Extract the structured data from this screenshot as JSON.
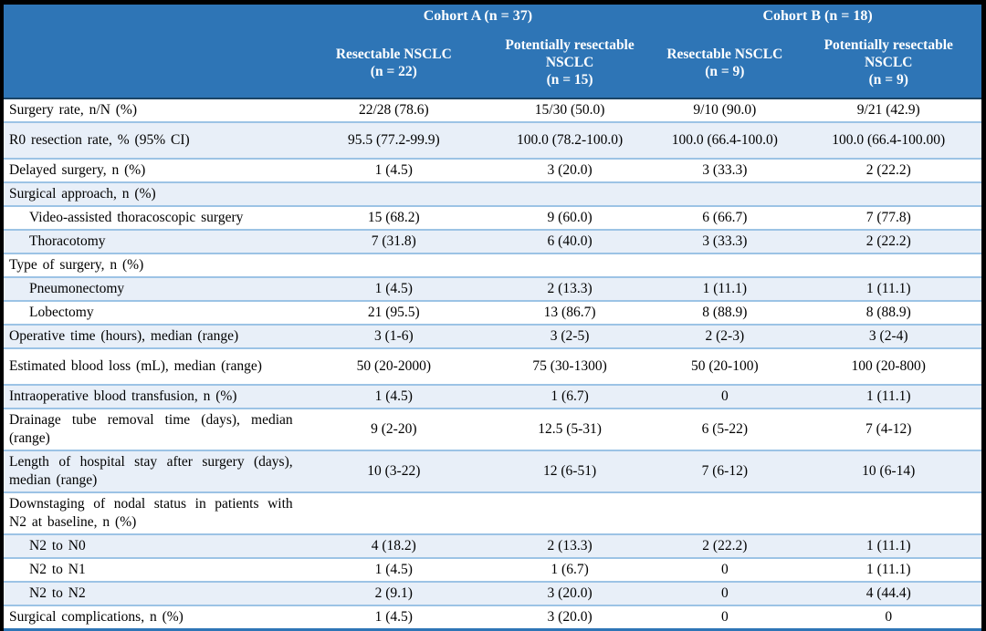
{
  "table": {
    "colors": {
      "header_bg": "#2E75B6",
      "band_bg": "#E8EFF8",
      "row_border": "#9CC3E5",
      "header_divider": "#1B4465",
      "bottom_line": "#2E75B6",
      "frame": "#000000",
      "header_text": "#FFFFFF",
      "body_text": "#000000"
    },
    "header": {
      "corner": "",
      "groups": [
        {
          "label": "Cohort A (n = 37)"
        },
        {
          "label": "Cohort B (n = 18)"
        }
      ],
      "columns": [
        {
          "name": "Resectable NSCLC",
          "n": "(n = 22)"
        },
        {
          "name": "Potentially resectable NSCLC",
          "n": "(n = 15)"
        },
        {
          "name": "Resectable NSCLC",
          "n": "(n = 9)"
        },
        {
          "name": "Potentially resectable NSCLC",
          "n": "(n = 9)"
        }
      ]
    },
    "rows": [
      {
        "label": "Surgery rate, n/N (%)",
        "indent": false,
        "tall": false,
        "values": [
          "22/28 (78.6)",
          "15/30 (50.0)",
          "9/10 (90.0)",
          "9/21 (42.9)"
        ]
      },
      {
        "label": "R0 resection rate, % (95% CI)",
        "indent": false,
        "tall": true,
        "values": [
          "95.5 (77.2-99.9)",
          "100.0 (78.2-100.0)",
          "100.0 (66.4-100.0)",
          "100.0 (66.4-100.00)"
        ]
      },
      {
        "label": "Delayed surgery, n (%)",
        "indent": false,
        "tall": false,
        "values": [
          "1 (4.5)",
          "3 (20.0)",
          "3 (33.3)",
          "2 (22.2)"
        ]
      },
      {
        "label": "Surgical approach, n (%)",
        "indent": false,
        "tall": false,
        "values": [
          "",
          "",
          "",
          ""
        ]
      },
      {
        "label": "Video-assisted thoracoscopic surgery",
        "indent": true,
        "tall": false,
        "values": [
          "15 (68.2)",
          "9 (60.0)",
          "6 (66.7)",
          "7 (77.8)"
        ]
      },
      {
        "label": "Thoracotomy",
        "indent": true,
        "tall": false,
        "values": [
          "7 (31.8)",
          "6 (40.0)",
          "3 (33.3)",
          "2 (22.2)"
        ]
      },
      {
        "label": "Type of surgery, n (%)",
        "indent": false,
        "tall": false,
        "values": [
          "",
          "",
          "",
          ""
        ]
      },
      {
        "label": "Pneumonectomy",
        "indent": true,
        "tall": false,
        "values": [
          "1 (4.5)",
          "2 (13.3)",
          "1 (11.1)",
          "1 (11.1)"
        ]
      },
      {
        "label": "Lobectomy",
        "indent": true,
        "tall": false,
        "values": [
          "21 (95.5)",
          "13 (86.7)",
          "8 (88.9)",
          "8 (88.9)"
        ]
      },
      {
        "label": "Operative time (hours), median (range)",
        "indent": false,
        "tall": false,
        "values": [
          "3 (1-6)",
          "3 (2-5)",
          "2 (2-3)",
          "3 (2-4)"
        ]
      },
      {
        "label": "Estimated blood loss (mL), median (range)",
        "indent": false,
        "tall": true,
        "values": [
          "50 (20-2000)",
          "75 (30-1300)",
          "50 (20-100)",
          "100 (20-800)"
        ]
      },
      {
        "label": "Intraoperative blood transfusion, n (%)",
        "indent": false,
        "tall": false,
        "values": [
          "1 (4.5)",
          "1 (6.7)",
          "0",
          "1 (11.1)"
        ]
      },
      {
        "label": "Drainage tube removal time (days), median (range)",
        "indent": false,
        "tall": false,
        "values": [
          "9 (2-20)",
          "12.5 (5-31)",
          "6 (5-22)",
          "7 (4-12)"
        ]
      },
      {
        "label": "Length of hospital stay after surgery (days), median (range)",
        "indent": false,
        "tall": false,
        "values": [
          "10 (3-22)",
          "12 (6-51)",
          "7 (6-12)",
          "10 (6-14)"
        ]
      },
      {
        "label": "Downstaging of nodal status in patients with N2 at baseline, n (%)",
        "indent": false,
        "tall": false,
        "values": [
          "",
          "",
          "",
          ""
        ]
      },
      {
        "label": "N2 to N0",
        "indent": true,
        "tall": false,
        "values": [
          "4 (18.2)",
          "2 (13.3)",
          "2 (22.2)",
          "1 (11.1)"
        ]
      },
      {
        "label": "N2 to N1",
        "indent": true,
        "tall": false,
        "values": [
          "1 (4.5)",
          "1 (6.7)",
          "0",
          "1 (11.1)"
        ]
      },
      {
        "label": "N2 to N2",
        "indent": true,
        "tall": false,
        "values": [
          "2 (9.1)",
          "3 (20.0)",
          "0",
          "4 (44.4)"
        ]
      },
      {
        "label": "Surgical complications, n (%)",
        "indent": false,
        "tall": false,
        "values": [
          "1 (4.5)",
          "3 (20.0)",
          "0",
          "0"
        ]
      }
    ]
  }
}
